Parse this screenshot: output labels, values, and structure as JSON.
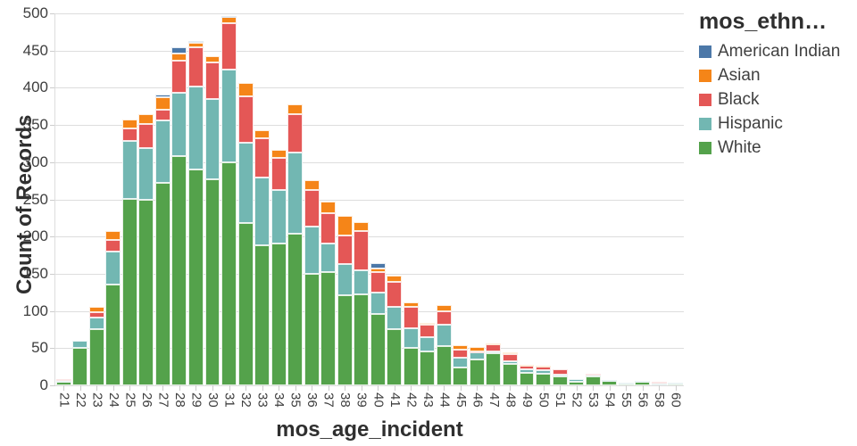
{
  "chart_data": {
    "type": "bar",
    "stacked": true,
    "title": "",
    "xlabel": "mos_age_incident",
    "ylabel": "Count of Records",
    "legend_title": "mos_ethn…",
    "legend_position": "top-right",
    "grid": true,
    "ylim": [
      0,
      500
    ],
    "y_tick_step": 50,
    "y_ticks": [
      0,
      50,
      100,
      150,
      200,
      250,
      300,
      350,
      400,
      450,
      500
    ],
    "categories": [
      "21",
      "22",
      "23",
      "24",
      "25",
      "26",
      "27",
      "28",
      "29",
      "30",
      "31",
      "32",
      "33",
      "34",
      "35",
      "36",
      "37",
      "38",
      "39",
      "40",
      "41",
      "42",
      "43",
      "44",
      "45",
      "46",
      "47",
      "48",
      "49",
      "50",
      "51",
      "52",
      "53",
      "54",
      "55",
      "56",
      "58",
      "60"
    ],
    "stack_order_bottom_to_top": [
      "White",
      "Hispanic",
      "Black",
      "Asian",
      "American Indian"
    ],
    "series": [
      {
        "name": "American Indian",
        "color": "#4c78a8",
        "values": [
          0,
          0,
          0,
          0,
          0,
          0,
          4,
          8,
          2,
          0,
          1,
          0,
          0,
          0,
          0,
          0,
          0,
          0,
          0,
          7,
          0,
          0,
          0,
          0,
          0,
          0,
          0,
          0,
          0,
          0,
          0,
          0,
          0,
          0,
          0,
          0,
          0,
          0
        ]
      },
      {
        "name": "Asian",
        "color": "#f58518",
        "values": [
          0,
          0,
          7,
          12,
          12,
          13,
          17,
          9,
          6,
          8,
          9,
          18,
          11,
          11,
          13,
          14,
          16,
          27,
          12,
          5,
          8,
          7,
          2,
          8,
          6,
          6,
          1,
          2,
          2,
          1,
          0,
          0,
          0,
          0,
          0,
          0,
          0,
          0
        ]
      },
      {
        "name": "Black",
        "color": "#e45756",
        "values": [
          2,
          0,
          7,
          15,
          17,
          32,
          14,
          44,
          53,
          49,
          63,
          62,
          53,
          43,
          52,
          49,
          40,
          38,
          53,
          27,
          33,
          28,
          17,
          19,
          11,
          2,
          10,
          10,
          4,
          5,
          8,
          0,
          1,
          0,
          0,
          0,
          3,
          0
        ]
      },
      {
        "name": "Hispanic",
        "color": "#72b7b2",
        "values": [
          1,
          10,
          15,
          45,
          77,
          70,
          84,
          85,
          112,
          108,
          124,
          108,
          91,
          72,
          109,
          63,
          39,
          42,
          33,
          29,
          30,
          27,
          20,
          28,
          13,
          9,
          2,
          3,
          5,
          4,
          2,
          3,
          2,
          1,
          1,
          1,
          1,
          3
        ]
      },
      {
        "name": "White",
        "color": "#54a24b",
        "values": [
          5,
          50,
          76,
          135,
          251,
          249,
          272,
          308,
          290,
          277,
          300,
          218,
          188,
          191,
          204,
          150,
          152,
          121,
          122,
          96,
          76,
          50,
          45,
          53,
          24,
          35,
          43,
          29,
          17,
          16,
          12,
          5,
          12,
          6,
          2,
          5,
          1,
          1
        ]
      }
    ]
  },
  "axes": {
    "x_title": "mos_age_incident",
    "y_title": "Count of Records"
  },
  "legend": {
    "title": "mos_ethn…"
  }
}
